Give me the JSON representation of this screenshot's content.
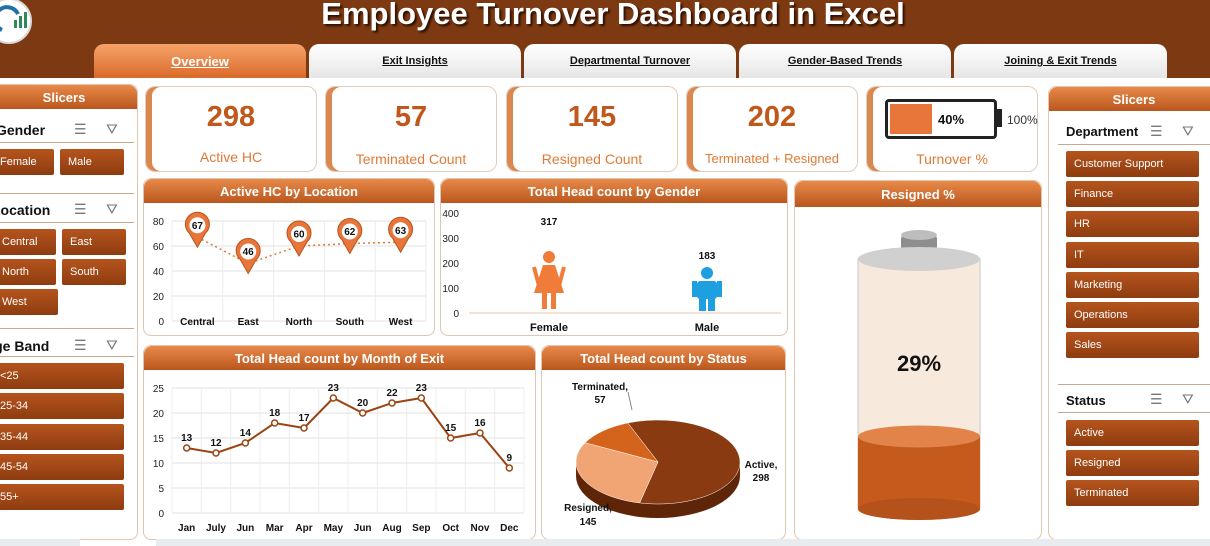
{
  "title": "Employee Turnover Dashboard in Excel",
  "tabs": [
    "Overview",
    "Exit Insights",
    "Departmental Turnover",
    "Gender-Based Trends",
    "Joining & Exit Trends"
  ],
  "kpis": {
    "active_hc": {
      "value": "298",
      "label": "Active HC"
    },
    "terminated": {
      "value": "57",
      "label": "Terminated Count"
    },
    "resigned": {
      "value": "145",
      "label": "Resigned Count"
    },
    "term_resigned": {
      "value": "202",
      "label": "Terminated + Resigned"
    },
    "turnover": {
      "value": "40%",
      "max": "100%",
      "label": "Turnover %",
      "fraction": 0.4
    }
  },
  "left_slicers": {
    "title": "Slicers",
    "gender": {
      "title": "Gender",
      "items": [
        "Female",
        "Male"
      ]
    },
    "location": {
      "title": "Location",
      "items": [
        "Central",
        "East",
        "North",
        "South",
        "West"
      ]
    },
    "age_band": {
      "title": "Age Band",
      "items": [
        "<25",
        "25-34",
        "35-44",
        "45-54",
        "55+"
      ]
    }
  },
  "right_slicers": {
    "title": "Slicers",
    "department": {
      "title": "Department",
      "items": [
        "Customer Support",
        "Finance",
        "HR",
        "IT",
        "Marketing",
        "Operations",
        "Sales"
      ]
    },
    "status": {
      "title": "Status",
      "items": [
        "Active",
        "Resigned",
        "Terminated"
      ]
    }
  },
  "colors": {
    "brand": "#7d3a12",
    "accent": "#c0581c",
    "female": "#f07c3a",
    "male": "#1ea0e0"
  },
  "chart_data": [
    {
      "type": "line",
      "title": "Active HC by Location",
      "categories": [
        "Central",
        "East",
        "North",
        "South",
        "West"
      ],
      "values": [
        67,
        46,
        60,
        62,
        63
      ],
      "ylim": [
        0,
        80
      ],
      "yticks": [
        "0",
        "20",
        "40",
        "60",
        "80"
      ]
    },
    {
      "type": "bar",
      "title": "Total Head count by Gender",
      "categories": [
        "Female",
        "Male"
      ],
      "values": [
        317,
        183
      ],
      "ylim": [
        0,
        400
      ],
      "yticks": [
        "0",
        "100",
        "200",
        "300",
        "400"
      ]
    },
    {
      "type": "line",
      "title": "Total Head count by Month of Exit",
      "categories": [
        "Jan",
        "July",
        "Jun",
        "Mar",
        "Apr",
        "May",
        "Jun",
        "Aug",
        "Sep",
        "Oct",
        "Nov",
        "Dec"
      ],
      "values": [
        13,
        12,
        14,
        18,
        17,
        23,
        20,
        22,
        23,
        15,
        16,
        9
      ],
      "ylim": [
        0,
        25
      ],
      "yticks": [
        "0",
        "5",
        "10",
        "15",
        "20",
        "25"
      ]
    },
    {
      "type": "pie",
      "title": "Total Head count by Status",
      "slices": [
        {
          "name": "Active",
          "value": 298
        },
        {
          "name": "Resigned",
          "value": 145
        },
        {
          "name": "Terminated",
          "value": 57
        }
      ],
      "labels": {
        "active": [
          "Active,",
          "298"
        ],
        "resigned": [
          "Resigned,",
          "145"
        ],
        "terminated": [
          "Terminated,",
          "57"
        ]
      }
    },
    {
      "type": "gauge",
      "title": "Resigned %",
      "value_label": "29%",
      "fraction": 0.29
    }
  ]
}
